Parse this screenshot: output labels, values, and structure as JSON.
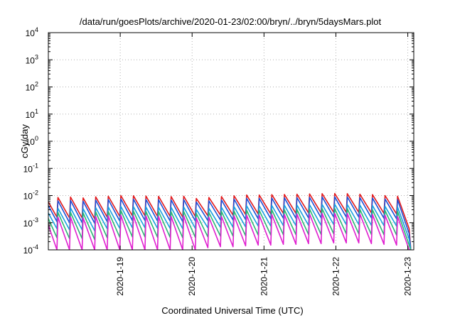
{
  "chart_data": {
    "type": "line",
    "title": "/data/run/goesPlots/archive/2020-01-23/02:00/bryn/../bryn/5daysMars.plot",
    "xlabel": "Coordinated Universal Time (UTC)",
    "ylabel": "cGy/day",
    "yscale": "log",
    "ylim": [
      0.0001,
      10000
    ],
    "xlim": [
      "2020-01-18 00:00",
      "2020-01-23 02:00"
    ],
    "xticks": [
      "2020-1-19",
      "2020-1-20",
      "2020-1-21",
      "2020-1-22",
      "2020-1-23"
    ],
    "yticks": [
      {
        "base": "10",
        "exp": "-4",
        "value": 0.0001
      },
      {
        "base": "10",
        "exp": "-3",
        "value": 0.001
      },
      {
        "base": "10",
        "exp": "-2",
        "value": 0.01
      },
      {
        "base": "10",
        "exp": "-1",
        "value": 0.1
      },
      {
        "base": "10",
        "exp": "0",
        "value": 1
      },
      {
        "base": "10",
        "exp": "1",
        "value": 10
      },
      {
        "base": "10",
        "exp": "2",
        "value": 100
      },
      {
        "base": "10",
        "exp": "3",
        "value": 1000
      },
      {
        "base": "10",
        "exp": "4",
        "value": 10000
      }
    ],
    "grid": true,
    "legend": "none",
    "series": [
      {
        "color": "#e31a1c",
        "peaks": [
          0.009,
          0.0085,
          0.0088,
          0.0082,
          0.009,
          0.0095,
          0.01,
          0.0098,
          0.0096,
          0.0094,
          0.0092,
          0.0095,
          0.0078,
          0.0085,
          0.0092,
          0.0098,
          0.0105,
          0.0105,
          0.0108,
          0.011,
          0.0112,
          0.0115,
          0.0118,
          0.012,
          0.0118,
          0.0112,
          0.0108,
          0.01,
          0.0095
        ],
        "troughs": [
          0.0016,
          0.0015,
          0.0015,
          0.0014,
          0.0016,
          0.0017,
          0.0018,
          0.0018,
          0.0017,
          0.0017,
          0.0016,
          0.0017,
          0.0018,
          0.0019,
          0.0019,
          0.002,
          0.0021,
          0.0021,
          0.0022,
          0.0022,
          0.0023,
          0.0023,
          0.0024,
          0.0024,
          0.0024,
          0.0023,
          0.0022,
          0.0021,
          0.0006
        ],
        "end": 0.00011
      },
      {
        "color": "#1f4fd6",
        "peaks": [
          0.0068,
          0.0064,
          0.0066,
          0.0062,
          0.0068,
          0.0072,
          0.0075,
          0.0074,
          0.0072,
          0.007,
          0.0069,
          0.0071,
          0.0058,
          0.0064,
          0.0069,
          0.0074,
          0.0079,
          0.0079,
          0.0081,
          0.0083,
          0.0084,
          0.0086,
          0.0089,
          0.009,
          0.0089,
          0.0084,
          0.0081,
          0.0075,
          0.0071
        ],
        "troughs": [
          0.0011,
          0.001,
          0.001,
          0.00095,
          0.0011,
          0.00115,
          0.0012,
          0.0012,
          0.00115,
          0.00115,
          0.0011,
          0.00115,
          0.0012,
          0.00125,
          0.00125,
          0.0013,
          0.0014,
          0.0014,
          0.00145,
          0.00145,
          0.0015,
          0.0015,
          0.0016,
          0.0016,
          0.0016,
          0.0015,
          0.00145,
          0.0014,
          0.0004
        ],
        "end": 0.0001
      },
      {
        "color": "#1aa0e0",
        "peaks": [
          0.0036,
          0.0034,
          0.0035,
          0.0033,
          0.0036,
          0.0038,
          0.004,
          0.0039,
          0.0038,
          0.0037,
          0.0037,
          0.0038,
          0.0031,
          0.0034,
          0.0037,
          0.0039,
          0.0042,
          0.0042,
          0.0043,
          0.0044,
          0.0045,
          0.0046,
          0.0047,
          0.0048,
          0.0047,
          0.0045,
          0.0043,
          0.004,
          0.0038
        ],
        "troughs": [
          0.0006,
          0.00055,
          0.00055,
          0.0005,
          0.0006,
          0.00062,
          0.00065,
          0.00065,
          0.00062,
          0.00062,
          0.0006,
          0.00062,
          0.00065,
          0.00068,
          0.00068,
          0.0007,
          0.00075,
          0.00075,
          0.00078,
          0.00078,
          0.0008,
          0.0008,
          0.00085,
          0.00085,
          0.00085,
          0.0008,
          0.00078,
          0.00075,
          0.00025
        ],
        "end": 0.0001
      },
      {
        "color": "#2bb673",
        "peaks": [
          0.0025,
          0.0024,
          0.0024,
          0.0023,
          0.0025,
          0.0026,
          0.0028,
          0.0027,
          0.0026,
          0.0026,
          0.0025,
          0.0026,
          0.0022,
          0.0024,
          0.0026,
          0.0027,
          0.0029,
          0.0029,
          0.003,
          0.003,
          0.0031,
          0.0032,
          0.0033,
          0.0033,
          0.0033,
          0.0031,
          0.003,
          0.0028,
          0.0026
        ],
        "troughs": [
          0.00028,
          0.00026,
          0.00026,
          0.00024,
          0.00028,
          0.00029,
          0.0003,
          0.0003,
          0.00029,
          0.00029,
          0.00028,
          0.00029,
          0.0003,
          0.00032,
          0.00032,
          0.00033,
          0.00035,
          0.00035,
          0.00036,
          0.00036,
          0.00037,
          0.00037,
          0.00039,
          0.00039,
          0.00039,
          0.00037,
          0.00036,
          0.00035,
          0.00015
        ],
        "end": 0.0001
      },
      {
        "color": "#e01fd0",
        "peaks": [
          0.0017,
          0.0016,
          0.0016,
          0.0015,
          0.0017,
          0.0018,
          0.0019,
          0.0018,
          0.0018,
          0.0017,
          0.0017,
          0.0018,
          0.0015,
          0.0016,
          0.0017,
          0.0018,
          0.0019,
          0.0019,
          0.002,
          0.002,
          0.0021,
          0.0021,
          0.0022,
          0.0022,
          0.0022,
          0.0021,
          0.002,
          0.0019,
          0.0017
        ],
        "troughs": [
          0.0001,
          0.0001,
          0.0001,
          0.0001,
          0.0001,
          0.0001,
          0.0001,
          0.0001,
          0.0001,
          0.0001,
          0.0001,
          0.0001,
          0.00012,
          0.00013,
          0.00013,
          0.00014,
          0.00015,
          0.00015,
          0.00016,
          0.00016,
          0.00017,
          0.00017,
          0.00018,
          0.00018,
          0.00018,
          0.00017,
          0.00016,
          0.00015,
          0.0001
        ],
        "end": 0.0001
      }
    ]
  }
}
